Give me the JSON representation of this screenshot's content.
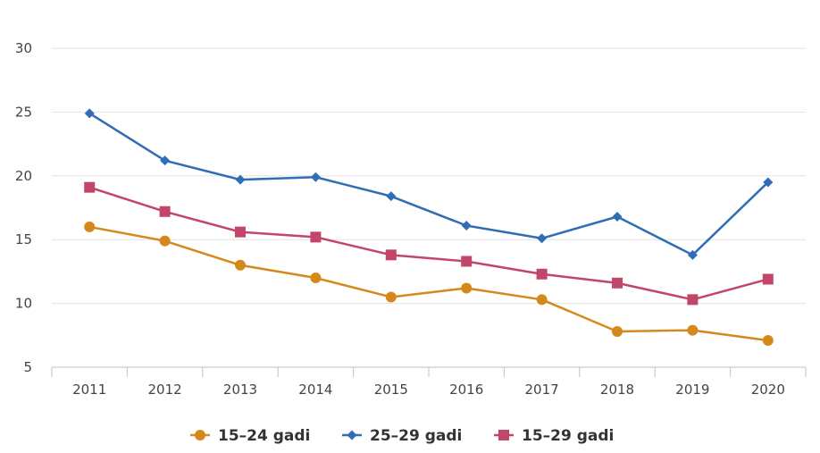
{
  "chart_data": {
    "type": "line",
    "x": [
      "2011",
      "2012",
      "2013",
      "2014",
      "2015",
      "2016",
      "2017",
      "2018",
      "2019",
      "2020"
    ],
    "ylim": [
      5,
      30
    ],
    "yticks": [
      "5",
      "10",
      "15",
      "20",
      "25",
      "30"
    ],
    "grid": "horizontal",
    "legend_position": "bottom-center",
    "series": [
      {
        "name": "15–24 gadi",
        "color": "#D4891A",
        "marker": "circle",
        "values": [
          16.0,
          14.9,
          13.0,
          12.0,
          10.5,
          11.2,
          10.3,
          7.8,
          7.9,
          7.1
        ]
      },
      {
        "name": "25–29 gadi",
        "color": "#2F6DB5",
        "marker": "diamond",
        "values": [
          24.9,
          21.2,
          19.7,
          19.9,
          18.4,
          16.1,
          15.1,
          16.8,
          13.8,
          19.5
        ]
      },
      {
        "name": "15–29 gadi",
        "color": "#C2456A",
        "marker": "square",
        "values": [
          19.1,
          17.2,
          15.6,
          15.2,
          13.8,
          13.3,
          12.3,
          11.6,
          10.3,
          11.9
        ]
      }
    ]
  }
}
